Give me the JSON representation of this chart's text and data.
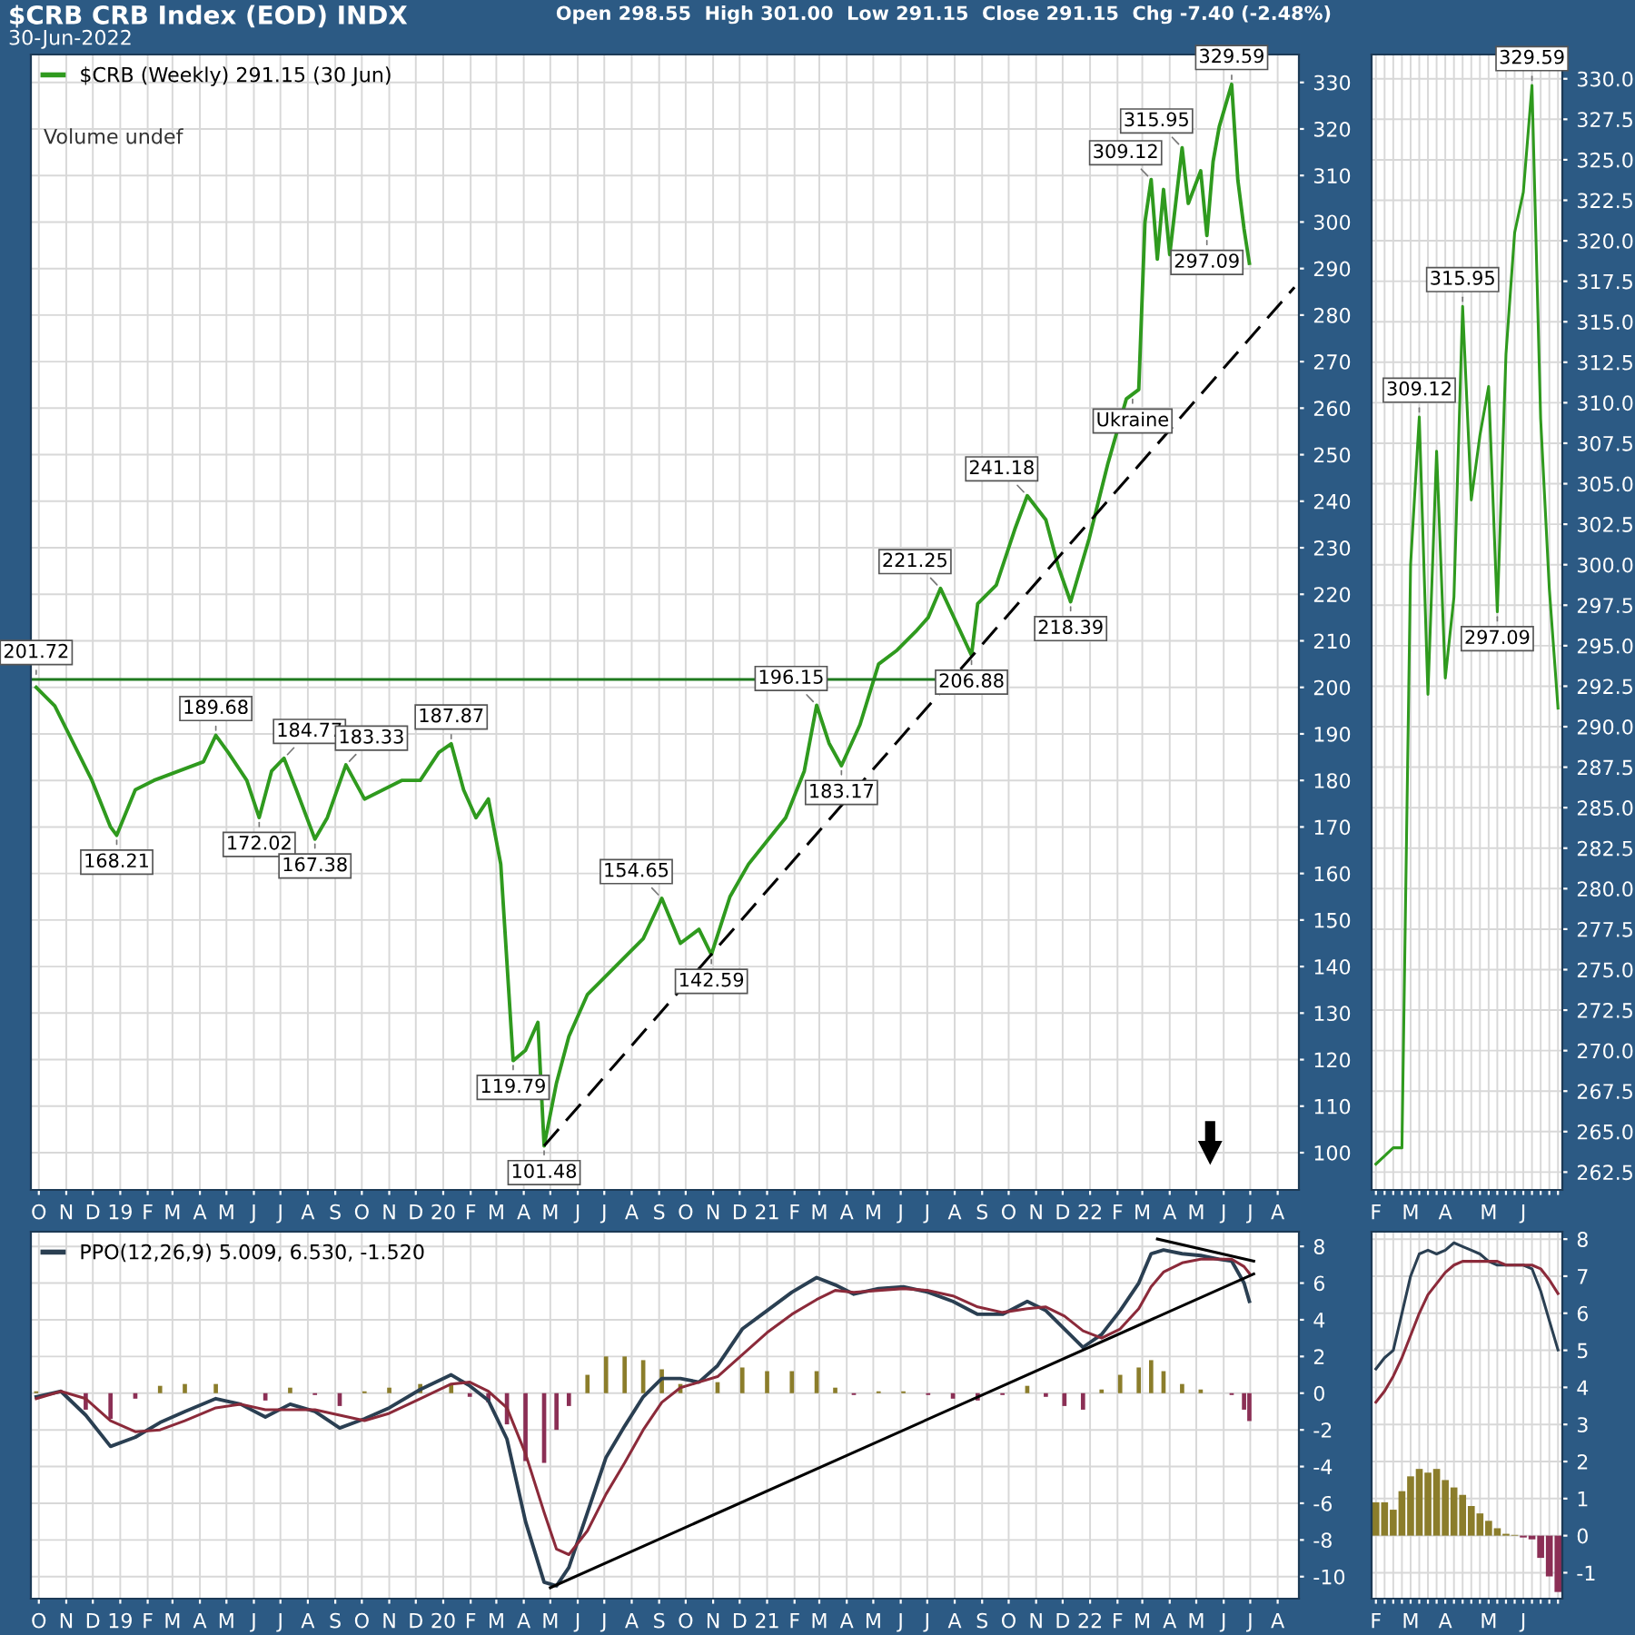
{
  "chart_data": [
    {
      "type": "line",
      "title": "$CRB CRB Index (EOD) INDX",
      "subtitle": "30-Jun-2022",
      "annotations": [
        "Open 298.55  High 301.00  Low 291.15  Close 291.15  Chg -7.40 (-2.48%)",
        "Volume undef",
        {
          "text": "201.72",
          "x": "2018-09-28",
          "y": 201.72
        },
        {
          "text": "168.21",
          "x": "2018-12-28",
          "y": 168.21
        },
        {
          "text": "189.68",
          "x": "2019-04-19",
          "y": 189.68
        },
        {
          "text": "172.02",
          "x": "2019-06-07",
          "y": 172.02
        },
        {
          "text": "184.77",
          "x": "2019-07-05",
          "y": 184.77
        },
        {
          "text": "167.38",
          "x": "2019-08-09",
          "y": 167.38
        },
        {
          "text": "183.33",
          "x": "2019-09-13",
          "y": 183.33
        },
        {
          "text": "187.87",
          "x": "2020-01-10",
          "y": 187.87
        },
        {
          "text": "119.79",
          "x": "2020-03-20",
          "y": 119.79
        },
        {
          "text": "101.48",
          "x": "2020-04-24",
          "y": 101.48
        },
        {
          "text": "154.65",
          "x": "2020-09-04",
          "y": 154.65
        },
        {
          "text": "142.59",
          "x": "2020-10-30",
          "y": 142.59
        },
        {
          "text": "196.15",
          "x": "2021-02-26",
          "y": 196.15
        },
        {
          "text": "183.17",
          "x": "2021-03-26",
          "y": 183.17
        },
        {
          "text": "221.25",
          "x": "2021-07-16",
          "y": 221.25
        },
        {
          "text": "206.88",
          "x": "2021-08-20",
          "y": 206.88
        },
        {
          "text": "241.18",
          "x": "2021-10-22",
          "y": 241.18
        },
        {
          "text": "218.39",
          "x": "2021-12-10",
          "y": 218.39
        },
        {
          "text": "Ukraine",
          "x": "2022-02-18",
          "y": 263
        },
        {
          "text": "309.12",
          "x": "2022-03-11",
          "y": 309.12
        },
        {
          "text": "315.95",
          "x": "2022-04-15",
          "y": 315.95
        },
        {
          "text": "297.09",
          "x": "2022-05-13",
          "y": 297.09
        },
        {
          "text": "329.59",
          "x": "2022-06-10",
          "y": 329.59
        }
      ],
      "x": [
        "2018-09-28",
        "2018-10-19",
        "2018-11-09",
        "2018-11-30",
        "2018-12-21",
        "2018-12-28",
        "2019-01-18",
        "2019-02-08",
        "2019-03-08",
        "2019-04-05",
        "2019-04-19",
        "2019-05-03",
        "2019-05-24",
        "2019-06-07",
        "2019-06-21",
        "2019-07-05",
        "2019-07-19",
        "2019-08-09",
        "2019-08-23",
        "2019-09-13",
        "2019-10-04",
        "2019-10-25",
        "2019-11-15",
        "2019-12-06",
        "2019-12-27",
        "2020-01-10",
        "2020-01-24",
        "2020-02-07",
        "2020-02-21",
        "2020-03-06",
        "2020-03-20",
        "2020-04-03",
        "2020-04-17",
        "2020-04-24",
        "2020-05-08",
        "2020-05-22",
        "2020-06-12",
        "2020-07-03",
        "2020-07-24",
        "2020-08-14",
        "2020-09-04",
        "2020-09-25",
        "2020-10-16",
        "2020-10-30",
        "2020-11-20",
        "2020-12-11",
        "2021-01-01",
        "2021-01-22",
        "2021-02-12",
        "2021-02-26",
        "2021-03-12",
        "2021-03-26",
        "2021-04-16",
        "2021-05-07",
        "2021-05-28",
        "2021-06-18",
        "2021-07-02",
        "2021-07-16",
        "2021-08-20",
        "2021-08-27",
        "2021-09-17",
        "2021-10-08",
        "2021-10-22",
        "2021-11-12",
        "2021-11-26",
        "2021-12-10",
        "2021-12-31",
        "2022-01-21",
        "2022-02-11",
        "2022-02-25",
        "2022-03-04",
        "2022-03-11",
        "2022-03-18",
        "2022-03-25",
        "2022-04-01",
        "2022-04-15",
        "2022-04-22",
        "2022-05-06",
        "2022-05-13",
        "2022-05-20",
        "2022-05-27",
        "2022-06-10",
        "2022-06-17",
        "2022-06-24",
        "2022-06-30"
      ],
      "series": [
        {
          "name": "$CRB (Weekly) 291.15 (30 Jun)",
          "color": "#2f9a1e",
          "values": [
            200,
            196,
            188,
            180,
            170,
            168.21,
            178,
            180,
            182,
            184,
            189.68,
            186,
            180,
            172.02,
            182,
            184.77,
            178,
            167.38,
            172,
            183.33,
            176,
            178,
            180,
            180,
            186,
            187.87,
            178,
            172,
            176,
            162,
            119.79,
            122,
            128,
            101.48,
            115,
            125,
            134,
            138,
            142,
            146,
            154.65,
            145,
            148,
            142.59,
            155,
            162,
            167,
            172,
            182,
            196.15,
            188,
            183.17,
            192,
            205,
            208,
            212,
            215,
            221.25,
            206.88,
            218,
            222,
            234,
            241.18,
            236,
            226,
            218.39,
            232,
            248,
            262,
            264,
            300,
            309.12,
            292,
            307,
            293,
            315.95,
            304,
            311,
            297.09,
            313,
            320.5,
            329.59,
            309,
            298.5,
            291.15
          ]
        },
        {
          "type": "line",
          "color": "#1f7a1f",
          "x": [
            "2018-09-22",
            "2021-07-10"
          ],
          "values": [
            201.72,
            201.72
          ]
        },
        {
          "type": "line",
          "color": "#000000",
          "line_style": "dashed",
          "x": [
            "2020-04-24",
            "2022-08-20"
          ],
          "values": [
            101.48,
            286
          ]
        }
      ],
      "xlim": [
        "2018-09-22",
        "2022-08-25"
      ],
      "ylim": [
        92,
        336
      ],
      "yticks": [
        100,
        110,
        120,
        130,
        140,
        150,
        160,
        170,
        180,
        190,
        200,
        210,
        220,
        230,
        240,
        250,
        260,
        270,
        280,
        290,
        300,
        310,
        320,
        330
      ],
      "xticks": [
        {
          "value": "2018-10-01",
          "label": "O"
        },
        {
          "value": "2018-11-01",
          "label": "N"
        },
        {
          "value": "2018-12-01",
          "label": "D"
        },
        {
          "value": "2019-01-01",
          "label": "19"
        },
        {
          "value": "2019-02-01",
          "label": "F"
        },
        {
          "value": "2019-03-01",
          "label": "M"
        },
        {
          "value": "2019-04-01",
          "label": "A"
        },
        {
          "value": "2019-05-01",
          "label": "M"
        },
        {
          "value": "2019-06-01",
          "label": "J"
        },
        {
          "value": "2019-07-01",
          "label": "J"
        },
        {
          "value": "2019-08-01",
          "label": "A"
        },
        {
          "value": "2019-09-01",
          "label": "S"
        },
        {
          "value": "2019-10-01",
          "label": "O"
        },
        {
          "value": "2019-11-01",
          "label": "N"
        },
        {
          "value": "2019-12-01",
          "label": "D"
        },
        {
          "value": "2020-01-01",
          "label": "20"
        },
        {
          "value": "2020-02-01",
          "label": "F"
        },
        {
          "value": "2020-03-01",
          "label": "M"
        },
        {
          "value": "2020-04-01",
          "label": "A"
        },
        {
          "value": "2020-05-01",
          "label": "M"
        },
        {
          "value": "2020-06-01",
          "label": "J"
        },
        {
          "value": "2020-07-01",
          "label": "J"
        },
        {
          "value": "2020-08-01",
          "label": "A"
        },
        {
          "value": "2020-09-01",
          "label": "S"
        },
        {
          "value": "2020-10-01",
          "label": "O"
        },
        {
          "value": "2020-11-01",
          "label": "N"
        },
        {
          "value": "2020-12-01",
          "label": "D"
        },
        {
          "value": "2021-01-01",
          "label": "21"
        },
        {
          "value": "2021-02-01",
          "label": "F"
        },
        {
          "value": "2021-03-01",
          "label": "M"
        },
        {
          "value": "2021-04-01",
          "label": "A"
        },
        {
          "value": "2021-05-01",
          "label": "M"
        },
        {
          "value": "2021-06-01",
          "label": "J"
        },
        {
          "value": "2021-07-01",
          "label": "J"
        },
        {
          "value": "2021-08-01",
          "label": "A"
        },
        {
          "value": "2021-09-01",
          "label": "S"
        },
        {
          "value": "2021-10-01",
          "label": "O"
        },
        {
          "value": "2021-11-01",
          "label": "N"
        },
        {
          "value": "2021-12-01",
          "label": "D"
        },
        {
          "value": "2022-01-01",
          "label": "22"
        },
        {
          "value": "2022-02-01",
          "label": "F"
        },
        {
          "value": "2022-03-01",
          "label": "M"
        },
        {
          "value": "2022-04-01",
          "label": "A"
        },
        {
          "value": "2022-05-01",
          "label": "M"
        },
        {
          "value": "2022-06-01",
          "label": "J"
        },
        {
          "value": "2022-07-01",
          "label": "J"
        },
        {
          "value": "2022-08-01",
          "label": "A"
        }
      ],
      "grid": true,
      "legend": "top left"
    },
    {
      "type": "line",
      "x": [
        "2018-09-28",
        "2018-10-26",
        "2018-11-23",
        "2018-12-21",
        "2019-01-18",
        "2019-02-15",
        "2019-03-15",
        "2019-04-19",
        "2019-05-17",
        "2019-06-14",
        "2019-07-12",
        "2019-08-09",
        "2019-09-06",
        "2019-10-04",
        "2019-11-01",
        "2019-12-06",
        "2020-01-10",
        "2020-01-31",
        "2020-02-21",
        "2020-03-13",
        "2020-04-03",
        "2020-04-24",
        "2020-05-08",
        "2020-05-22",
        "2020-06-12",
        "2020-07-03",
        "2020-07-24",
        "2020-08-14",
        "2020-09-04",
        "2020-09-25",
        "2020-10-16",
        "2020-11-06",
        "2020-12-04",
        "2021-01-01",
        "2021-01-29",
        "2021-02-26",
        "2021-03-19",
        "2021-04-09",
        "2021-05-07",
        "2021-06-04",
        "2021-07-02",
        "2021-07-30",
        "2021-08-27",
        "2021-09-24",
        "2021-10-22",
        "2021-11-12",
        "2021-12-03",
        "2021-12-24",
        "2022-01-14",
        "2022-02-04",
        "2022-02-25",
        "2022-03-11",
        "2022-03-25",
        "2022-04-15",
        "2022-05-06",
        "2022-05-27",
        "2022-06-10",
        "2022-06-24",
        "2022-06-30"
      ],
      "series": [
        {
          "name": "PPO(12,26,9) 5.009, 6.530, -1.520",
          "color": "#2a3f52",
          "values": [
            -0.2,
            0.1,
            -1.2,
            -2.9,
            -2.4,
            -1.6,
            -1.0,
            -0.3,
            -0.6,
            -1.3,
            -0.6,
            -1.0,
            -1.9,
            -1.4,
            -0.8,
            0.2,
            1.0,
            0.4,
            -0.4,
            -2.5,
            -7.0,
            -10.3,
            -10.5,
            -9.5,
            -6.5,
            -3.5,
            -1.8,
            -0.2,
            0.8,
            0.8,
            0.6,
            1.5,
            3.5,
            4.5,
            5.5,
            6.3,
            5.9,
            5.4,
            5.7,
            5.8,
            5.5,
            5.0,
            4.3,
            4.3,
            5.0,
            4.5,
            3.5,
            2.5,
            3.2,
            4.5,
            6.0,
            7.6,
            7.8,
            7.6,
            7.5,
            7.3,
            7.2,
            6.0,
            5.009
          ]
        },
        {
          "color": "#8b2a3a",
          "values": [
            -0.3,
            0.1,
            -0.3,
            -1.5,
            -2.1,
            -2.0,
            -1.5,
            -0.8,
            -0.6,
            -0.9,
            -0.9,
            -0.9,
            -1.2,
            -1.5,
            -1.1,
            -0.3,
            0.5,
            0.6,
            0.1,
            -0.8,
            -3.3,
            -6.5,
            -8.5,
            -8.8,
            -7.5,
            -5.5,
            -3.8,
            -2.0,
            -0.5,
            0.3,
            0.6,
            0.9,
            2.1,
            3.3,
            4.3,
            5.1,
            5.6,
            5.5,
            5.6,
            5.7,
            5.6,
            5.3,
            4.7,
            4.4,
            4.6,
            4.7,
            4.2,
            3.4,
            3.0,
            3.5,
            4.6,
            5.8,
            6.6,
            7.1,
            7.3,
            7.3,
            7.3,
            6.9,
            6.53
          ]
        },
        {
          "type": "bar",
          "values": [
            0.1,
            0.0,
            -0.9,
            -1.4,
            -0.3,
            0.4,
            0.5,
            0.5,
            0.0,
            -0.4,
            0.3,
            -0.1,
            -0.7,
            0.1,
            0.3,
            0.5,
            0.5,
            -0.2,
            -0.5,
            -1.7,
            -3.7,
            -3.8,
            -2.0,
            -0.7,
            1.0,
            2.0,
            2.0,
            1.8,
            1.3,
            0.5,
            0.0,
            0.6,
            1.4,
            1.2,
            1.2,
            1.2,
            0.3,
            -0.1,
            0.1,
            0.1,
            -0.1,
            -0.3,
            -0.4,
            -0.1,
            0.4,
            -0.2,
            -0.7,
            -0.9,
            0.2,
            1.0,
            1.4,
            1.8,
            1.2,
            0.5,
            0.2,
            0.0,
            -0.1,
            -0.9,
            -1.52
          ],
          "colors": [
            "#8b7d2b",
            "#8b7d2b",
            "#8b2f55",
            "#8b2f55",
            "#8b2f55",
            "#8b7d2b",
            "#8b7d2b",
            "#8b7d2b",
            "#8b7d2b",
            "#8b2f55",
            "#8b7d2b",
            "#8b2f55",
            "#8b2f55",
            "#8b7d2b",
            "#8b7d2b",
            "#8b7d2b",
            "#8b7d2b",
            "#8b2f55",
            "#8b2f55",
            "#8b2f55",
            "#8b2f55",
            "#8b2f55",
            "#8b2f55",
            "#8b2f55",
            "#8b7d2b",
            "#8b7d2b",
            "#8b7d2b",
            "#8b7d2b",
            "#8b7d2b",
            "#8b7d2b",
            "#8b7d2b",
            "#8b7d2b",
            "#8b7d2b",
            "#8b7d2b",
            "#8b7d2b",
            "#8b7d2b",
            "#8b7d2b",
            "#8b2f55",
            "#8b7d2b",
            "#8b7d2b",
            "#8b2f55",
            "#8b2f55",
            "#8b2f55",
            "#8b2f55",
            "#8b7d2b",
            "#8b2f55",
            "#8b2f55",
            "#8b2f55",
            "#8b7d2b",
            "#8b7d2b",
            "#8b7d2b",
            "#8b7d2b",
            "#8b7d2b",
            "#8b7d2b",
            "#8b7d2b",
            "#8b7d2b",
            "#8b2f55",
            "#8b2f55",
            "#8b2f55"
          ]
        },
        {
          "type": "line",
          "color": "#000000",
          "x": [
            "2020-05-01",
            "2022-07-05"
          ],
          "values": [
            -10.6,
            6.5
          ]
        },
        {
          "type": "line",
          "color": "#000000",
          "x": [
            "2022-03-18",
            "2022-07-05"
          ],
          "values": [
            8.4,
            7.2
          ]
        }
      ],
      "xlim": [
        "2018-09-22",
        "2022-08-25"
      ],
      "ylim": [
        -11.2,
        8.8
      ],
      "yticks": [
        -10,
        -8,
        -6,
        -4,
        -2,
        0,
        2,
        4,
        6,
        8
      ],
      "xticks": [
        {
          "value": "2018-10-01",
          "label": "O"
        },
        {
          "value": "2018-11-01",
          "label": "N"
        },
        {
          "value": "2018-12-01",
          "label": "D"
        },
        {
          "value": "2019-01-01",
          "label": "19"
        },
        {
          "value": "2019-02-01",
          "label": "F"
        },
        {
          "value": "2019-03-01",
          "label": "M"
        },
        {
          "value": "2019-04-01",
          "label": "A"
        },
        {
          "value": "2019-05-01",
          "label": "M"
        },
        {
          "value": "2019-06-01",
          "label": "J"
        },
        {
          "value": "2019-07-01",
          "label": "J"
        },
        {
          "value": "2019-08-01",
          "label": "A"
        },
        {
          "value": "2019-09-01",
          "label": "S"
        },
        {
          "value": "2019-10-01",
          "label": "O"
        },
        {
          "value": "2019-11-01",
          "label": "N"
        },
        {
          "value": "2019-12-01",
          "label": "D"
        },
        {
          "value": "2020-01-01",
          "label": "20"
        },
        {
          "value": "2020-02-01",
          "label": "F"
        },
        {
          "value": "2020-03-01",
          "label": "M"
        },
        {
          "value": "2020-04-01",
          "label": "A"
        },
        {
          "value": "2020-05-01",
          "label": "M"
        },
        {
          "value": "2020-06-01",
          "label": "J"
        },
        {
          "value": "2020-07-01",
          "label": "J"
        },
        {
          "value": "2020-08-01",
          "label": "A"
        },
        {
          "value": "2020-09-01",
          "label": "S"
        },
        {
          "value": "2020-10-01",
          "label": "O"
        },
        {
          "value": "2020-11-01",
          "label": "N"
        },
        {
          "value": "2020-12-01",
          "label": "D"
        },
        {
          "value": "2021-01-01",
          "label": "21"
        },
        {
          "value": "2021-02-01",
          "label": "F"
        },
        {
          "value": "2021-03-01",
          "label": "M"
        },
        {
          "value": "2021-04-01",
          "label": "A"
        },
        {
          "value": "2021-05-01",
          "label": "M"
        },
        {
          "value": "2021-06-01",
          "label": "J"
        },
        {
          "value": "2021-07-01",
          "label": "J"
        },
        {
          "value": "2021-08-01",
          "label": "A"
        },
        {
          "value": "2021-09-01",
          "label": "S"
        },
        {
          "value": "2021-10-01",
          "label": "O"
        },
        {
          "value": "2021-11-01",
          "label": "N"
        },
        {
          "value": "2021-12-01",
          "label": "D"
        },
        {
          "value": "2022-01-01",
          "label": "22"
        },
        {
          "value": "2022-02-01",
          "label": "F"
        },
        {
          "value": "2022-03-01",
          "label": "M"
        },
        {
          "value": "2022-04-01",
          "label": "A"
        },
        {
          "value": "2022-05-01",
          "label": "M"
        },
        {
          "value": "2022-06-01",
          "label": "J"
        },
        {
          "value": "2022-07-01",
          "label": "J"
        },
        {
          "value": "2022-08-01",
          "label": "A"
        }
      ],
      "grid": true,
      "legend": "top left"
    },
    {
      "type": "line",
      "annotations": [
        {
          "text": "309.12",
          "y": 309.12
        },
        {
          "text": "315.95",
          "y": 315.95
        },
        {
          "text": "297.09",
          "y": 297.09
        },
        {
          "text": "329.59",
          "y": 329.59
        }
      ],
      "categories": [
        "F",
        null,
        null,
        null,
        "M",
        null,
        null,
        null,
        "A",
        null,
        null,
        null,
        null,
        "M",
        null,
        null,
        null,
        "J",
        null,
        null,
        null,
        null
      ],
      "series": [
        {
          "color": "#2f9a1e",
          "values": [
            263,
            263.5,
            264,
            264,
            300,
            309.12,
            292,
            307,
            293,
            298,
            315.95,
            304,
            308,
            311,
            297.09,
            313,
            320.5,
            323,
            329.59,
            309,
            298.5,
            291.15
          ]
        }
      ],
      "ylim": [
        261.4,
        331.5
      ],
      "yticks": [
        {
          "value": 262.5,
          "label": "262.5"
        },
        {
          "value": 265,
          "label": "265.0"
        },
        {
          "value": 267.5,
          "label": "267.5"
        },
        {
          "value": 270,
          "label": "270.0"
        },
        {
          "value": 272.5,
          "label": "272.5"
        },
        {
          "value": 275,
          "label": "275.0"
        },
        {
          "value": 277.5,
          "label": "277.5"
        },
        {
          "value": 280,
          "label": "280.0"
        },
        {
          "value": 282.5,
          "label": "282.5"
        },
        {
          "value": 285,
          "label": "285.0"
        },
        {
          "value": 287.5,
          "label": "287.5"
        },
        {
          "value": 290,
          "label": "290.0"
        },
        {
          "value": 292.5,
          "label": "292.5"
        },
        {
          "value": 295,
          "label": "295.0"
        },
        {
          "value": 297.5,
          "label": "297.5"
        },
        {
          "value": 300,
          "label": "300.0"
        },
        {
          "value": 302.5,
          "label": "302.5"
        },
        {
          "value": 305,
          "label": "305.0"
        },
        {
          "value": 307.5,
          "label": "307.5"
        },
        {
          "value": 310,
          "label": "310.0"
        },
        {
          "value": 312.5,
          "label": "312.5"
        },
        {
          "value": 315,
          "label": "315.0"
        },
        {
          "value": 317.5,
          "label": "317.5"
        },
        {
          "value": 320,
          "label": "320.0"
        },
        {
          "value": 322.5,
          "label": "322.5"
        },
        {
          "value": 325,
          "label": "325.0"
        },
        {
          "value": 327.5,
          "label": "327.5"
        },
        {
          "value": 330,
          "label": "330.0"
        }
      ],
      "grid": true
    },
    {
      "type": "line",
      "categories": [
        "F",
        null,
        null,
        null,
        "M",
        null,
        null,
        null,
        "A",
        null,
        null,
        null,
        null,
        "M",
        null,
        null,
        null,
        "J",
        null,
        null,
        null,
        null
      ],
      "series": [
        {
          "color": "#2a3f52",
          "values": [
            4.5,
            4.8,
            5.0,
            6.0,
            7.0,
            7.6,
            7.7,
            7.6,
            7.7,
            7.9,
            7.8,
            7.7,
            7.6,
            7.4,
            7.3,
            7.3,
            7.3,
            7.3,
            7.2,
            6.6,
            5.8,
            5.009
          ]
        },
        {
          "color": "#8b2a3a",
          "values": [
            3.6,
            3.9,
            4.3,
            4.8,
            5.4,
            6.0,
            6.5,
            6.8,
            7.1,
            7.3,
            7.4,
            7.4,
            7.4,
            7.4,
            7.4,
            7.3,
            7.3,
            7.3,
            7.3,
            7.2,
            6.9,
            6.53
          ]
        },
        {
          "type": "bar",
          "values": [
            0.9,
            0.9,
            0.7,
            1.2,
            1.6,
            1.8,
            1.7,
            1.8,
            1.5,
            1.3,
            1.1,
            0.8,
            0.6,
            0.4,
            0.2,
            0.05,
            0.02,
            -0.05,
            -0.1,
            -0.6,
            -1.1,
            -1.52
          ],
          "colors": [
            "#8b7d2b",
            "#8b7d2b",
            "#8b7d2b",
            "#8b7d2b",
            "#8b7d2b",
            "#8b7d2b",
            "#8b7d2b",
            "#8b7d2b",
            "#8b7d2b",
            "#8b7d2b",
            "#8b7d2b",
            "#8b7d2b",
            "#8b7d2b",
            "#8b7d2b",
            "#8b7d2b",
            "#8b7d2b",
            "#8b7d2b",
            "#8b2f55",
            "#8b2f55",
            "#8b2f55",
            "#8b2f55",
            "#8b2f55"
          ]
        }
      ],
      "ylim": [
        -1.7,
        8.2
      ],
      "yticks": [
        -1,
        0,
        1,
        2,
        3,
        4,
        5,
        6,
        7,
        8
      ],
      "grid": true
    }
  ]
}
